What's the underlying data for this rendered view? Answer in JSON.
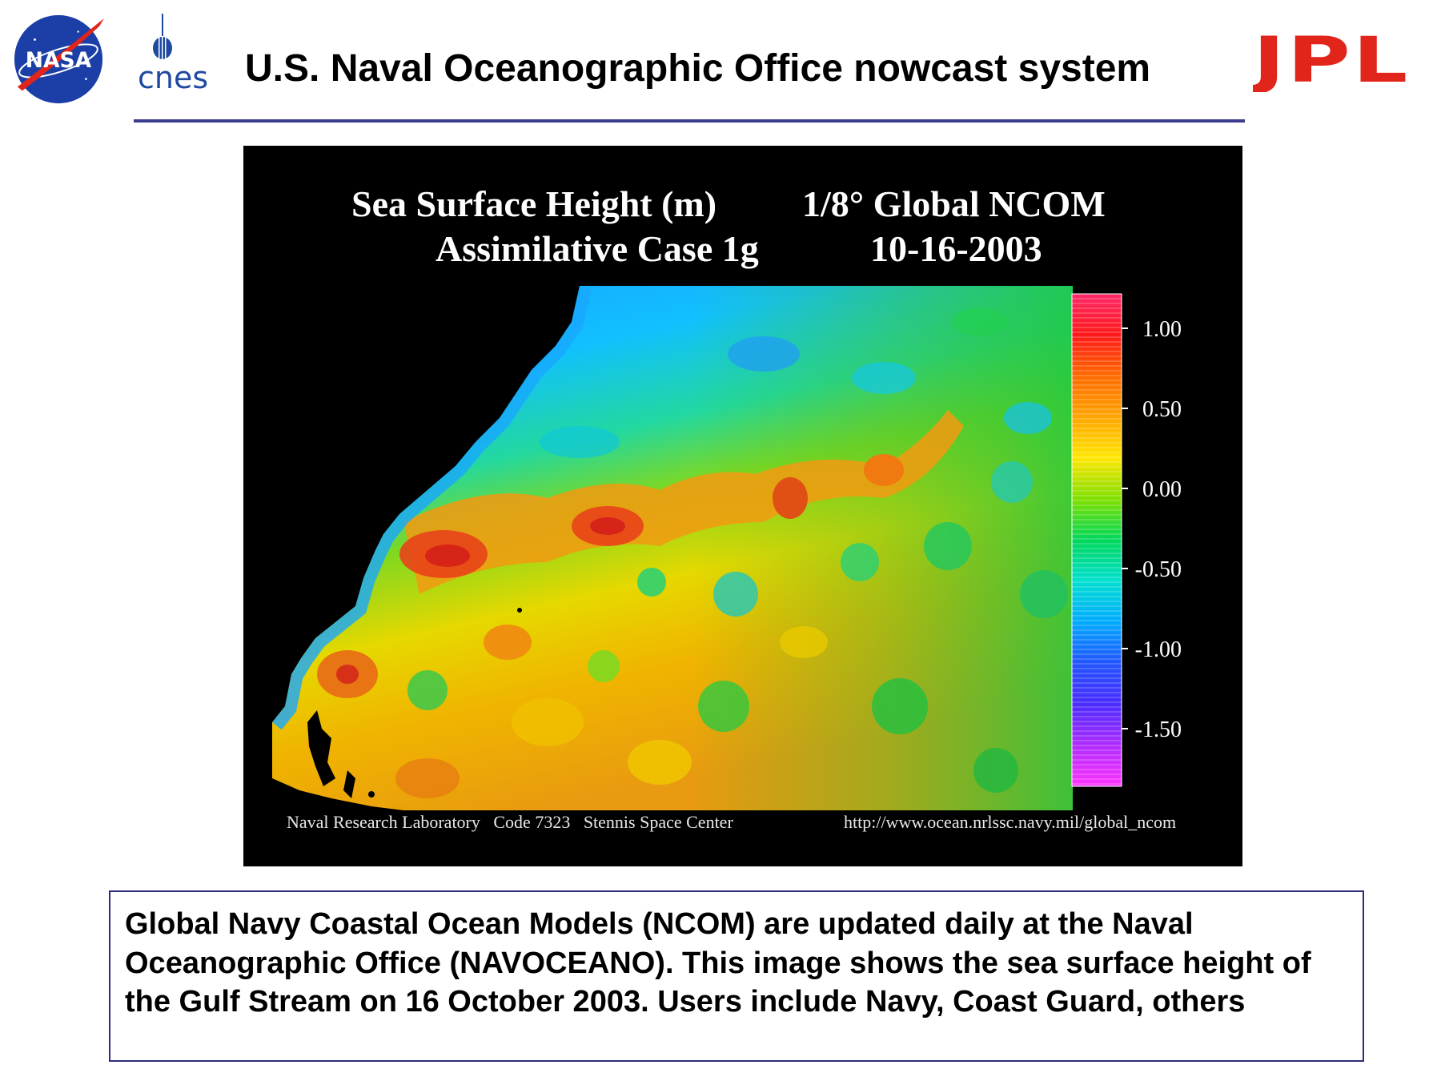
{
  "header": {
    "title": "U.S. Naval Oceanographic Office nowcast system",
    "logos": {
      "nasa": "NASA",
      "cnes": "cnes",
      "jpl": "JPL"
    }
  },
  "figure": {
    "title_line1_left": "Sea Surface Height (m)",
    "title_line1_right": "1/8° Global NCOM",
    "title_line2_left": "Assimilative Case 1g",
    "title_line2_right": "10-16-2003",
    "credit_left": "Naval Research Laboratory   Code 7323   Stennis Space Center",
    "credit_right": "http://www.ocean.nrlssc.navy.mil/global_ncom",
    "colorbar": {
      "ticks": [
        "1.00",
        "0.50",
        "0.00",
        "-0.50",
        "-1.00",
        "-1.50"
      ],
      "colors": [
        "#ff2a6a",
        "#ff1a1a",
        "#ff6a00",
        "#ffa500",
        "#ffe600",
        "#7fe000",
        "#00d85a",
        "#00e0d0",
        "#00aaff",
        "#2255ff",
        "#4a2cff",
        "#b02cff",
        "#ff33ff"
      ]
    }
  },
  "caption": {
    "text": "Global Navy Coastal Ocean Models (NCOM) are updated daily at the Naval Oceanographic Office (NAVOCEANO).  This image shows the sea surface height of the Gulf Stream on 16 October 2003. Users include Navy, Coast Guard, others"
  }
}
